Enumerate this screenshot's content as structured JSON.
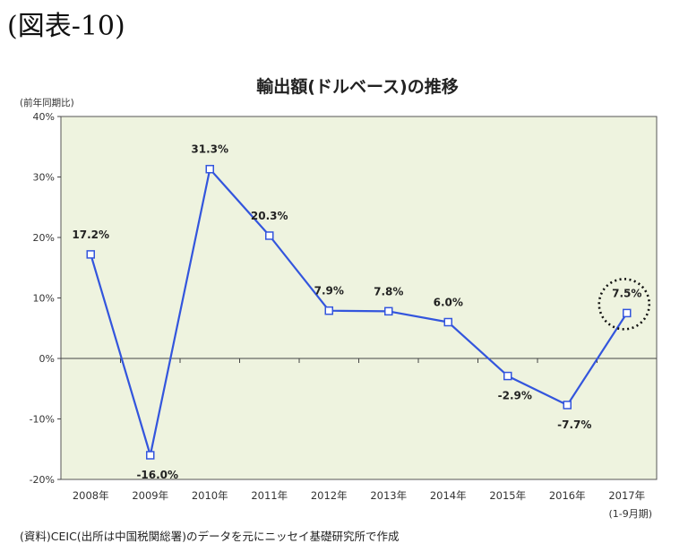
{
  "figure_label": "(図表-10)",
  "source_note": "(資料)CEIC(出所は中国税関総署)のデータを元にニッセイ基礎研究所で作成",
  "colors": {
    "plot_bg": "#eef3df",
    "line": "#3355dd",
    "marker_fill": "#ffffff",
    "axis": "#444444"
  },
  "chart_data": {
    "type": "line",
    "title": "輸出額(ドルベース)の推移",
    "ylabel": "(前年同期比)",
    "xlabel": "",
    "ylim": [
      -20,
      40
    ],
    "yticks": [
      -20,
      -10,
      0,
      10,
      20,
      30,
      40
    ],
    "ytick_labels": [
      "-20%",
      "-10%",
      "0%",
      "10%",
      "20%",
      "30%",
      "40%"
    ],
    "categories": [
      "2008年",
      "2009年",
      "2010年",
      "2011年",
      "2012年",
      "2013年",
      "2014年",
      "2015年",
      "2016年",
      "2017年"
    ],
    "category_sublabel": {
      "index": 9,
      "text": "(1-9月期)"
    },
    "values": [
      17.2,
      -16.0,
      31.3,
      20.3,
      7.9,
      7.8,
      6.0,
      -2.9,
      -7.7,
      7.5
    ],
    "data_labels": [
      "17.2%",
      "-16.0%",
      "31.3%",
      "20.3%",
      "7.9%",
      "7.8%",
      "6.0%",
      "-2.9%",
      "-7.7%",
      "7.5%"
    ],
    "highlight_index": 9,
    "grid": false,
    "legend": "none"
  }
}
